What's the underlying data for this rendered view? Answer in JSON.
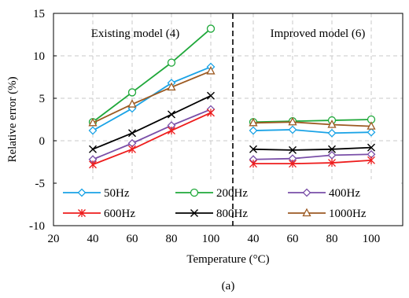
{
  "chart_data": {
    "type": "line",
    "xlabel": "Temperature (°C)",
    "ylabel": "Relative error (%)",
    "ylim": [
      -10,
      15
    ],
    "yticks": [
      -10,
      -5,
      0,
      5,
      10,
      15
    ],
    "xaxis_tick_labels": [
      "20",
      "40",
      "60",
      "80",
      "100",
      "40",
      "60",
      "80",
      "100"
    ],
    "grid": true,
    "legend_position": "bottom",
    "caption": "(a)",
    "panels": [
      {
        "name": "Existing model (4)",
        "x": [
          40,
          60,
          80,
          100
        ],
        "series": [
          {
            "name": "50Hz",
            "values": [
              1.2,
              3.8,
              6.8,
              8.7
            ]
          },
          {
            "name": "200Hz",
            "values": [
              2.2,
              5.7,
              9.2,
              13.2
            ]
          },
          {
            "name": "400Hz",
            "values": [
              -2.2,
              -0.3,
              1.8,
              3.7
            ]
          },
          {
            "name": "600Hz",
            "values": [
              -2.8,
              -1.0,
              1.2,
              3.3
            ]
          },
          {
            "name": "800Hz",
            "values": [
              -1.0,
              0.9,
              3.1,
              5.3
            ]
          },
          {
            "name": "1000Hz",
            "values": [
              2.1,
              4.3,
              6.3,
              8.2
            ]
          }
        ]
      },
      {
        "name": "Improved model (6)",
        "x": [
          40,
          60,
          80,
          100
        ],
        "series": [
          {
            "name": "50Hz",
            "values": [
              1.2,
              1.3,
              0.9,
              1.0
            ]
          },
          {
            "name": "200Hz",
            "values": [
              2.2,
              2.3,
              2.4,
              2.5
            ]
          },
          {
            "name": "400Hz",
            "values": [
              -2.2,
              -2.1,
              -1.7,
              -1.6
            ]
          },
          {
            "name": "600Hz",
            "values": [
              -2.7,
              -2.7,
              -2.6,
              -2.3
            ]
          },
          {
            "name": "800Hz",
            "values": [
              -1.0,
              -1.1,
              -1.0,
              -0.8
            ]
          },
          {
            "name": "1000Hz",
            "values": [
              2.1,
              2.2,
              1.9,
              1.7
            ]
          }
        ]
      }
    ],
    "series_styles": [
      {
        "name": "50Hz",
        "color": "#1aa3e6",
        "marker": "diamond"
      },
      {
        "name": "200Hz",
        "color": "#1fa83a",
        "marker": "circle"
      },
      {
        "name": "400Hz",
        "color": "#7a4fa8",
        "marker": "diamond"
      },
      {
        "name": "600Hz",
        "color": "#ee1c1c",
        "marker": "asterisk"
      },
      {
        "name": "800Hz",
        "color": "#000000",
        "marker": "x"
      },
      {
        "name": "1000Hz",
        "color": "#9c5a22",
        "marker": "triangle"
      }
    ]
  }
}
